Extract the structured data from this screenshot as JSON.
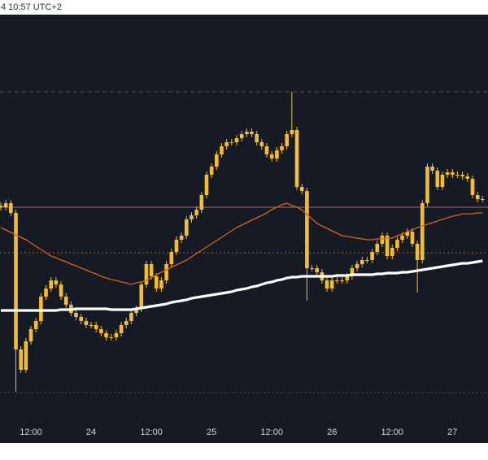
{
  "chart_data": {
    "type": "candlestick",
    "timestamp": "4 10:57 UTC+2",
    "categories": [
      null,
      null,
      null,
      null,
      null,
      null,
      "12:00",
      null,
      null,
      null,
      null,
      null,
      null,
      null,
      null,
      null,
      null,
      null,
      "24",
      null,
      null,
      null,
      null,
      null,
      null,
      null,
      null,
      null,
      null,
      null,
      "12:00",
      null,
      null,
      null,
      null,
      null,
      null,
      null,
      null,
      null,
      null,
      null,
      "25",
      null,
      null,
      null,
      null,
      null,
      null,
      null,
      null,
      null,
      null,
      null,
      "12:00",
      null,
      null,
      null,
      null,
      null,
      null,
      null,
      null,
      null,
      null,
      null,
      "26",
      null,
      null,
      null,
      null,
      null,
      null,
      null,
      null,
      null,
      null,
      null,
      "12:00",
      null,
      null,
      null,
      null,
      null,
      null,
      null,
      null,
      null,
      null,
      null,
      "27",
      null,
      null,
      null,
      null,
      null,
      null
    ],
    "open": [
      265,
      263,
      268,
      256,
      88,
      63,
      98,
      113,
      123,
      153,
      163,
      173,
      168,
      153,
      143,
      133,
      128,
      123,
      118,
      118,
      113,
      108,
      103,
      103,
      108,
      118,
      123,
      133,
      138,
      168,
      193,
      178,
      163,
      173,
      193,
      208,
      223,
      228,
      248,
      253,
      260,
      278,
      303,
      313,
      328,
      338,
      343,
      343,
      348,
      353,
      356,
      353,
      343,
      338,
      328,
      323,
      333,
      338,
      353,
      358,
      288,
      283,
      188,
      188,
      183,
      173,
      163,
      173,
      173,
      173,
      178,
      188,
      193,
      198,
      198,
      208,
      218,
      228,
      203,
      213,
      223,
      228,
      233,
      218,
      198,
      268,
      313,
      308,
      288,
      303,
      306,
      303,
      303,
      301,
      298,
      278,
      273
    ],
    "high": [
      269,
      272,
      272,
      260,
      92,
      102,
      117,
      127,
      157,
      167,
      177,
      177,
      172,
      157,
      147,
      137,
      132,
      127,
      122,
      122,
      117,
      112,
      107,
      112,
      122,
      127,
      137,
      142,
      172,
      197,
      197,
      182,
      177,
      197,
      212,
      227,
      232,
      252,
      257,
      264,
      282,
      307,
      317,
      332,
      342,
      347,
      347,
      352,
      357,
      360,
      360,
      357,
      347,
      342,
      332,
      337,
      342,
      357,
      405,
      362,
      292,
      287,
      192,
      192,
      187,
      177,
      177,
      177,
      177,
      182,
      192,
      197,
      202,
      202,
      212,
      222,
      232,
      232,
      217,
      227,
      232,
      237,
      237,
      222,
      272,
      317,
      317,
      312,
      307,
      310,
      310,
      307,
      307,
      305,
      302,
      282,
      277
    ],
    "low": [
      259,
      259,
      252,
      36,
      59,
      59,
      94,
      109,
      119,
      149,
      159,
      164,
      149,
      139,
      129,
      124,
      119,
      114,
      114,
      109,
      104,
      99,
      99,
      99,
      104,
      114,
      119,
      129,
      134,
      164,
      174,
      159,
      159,
      169,
      189,
      204,
      219,
      224,
      244,
      249,
      256,
      274,
      299,
      309,
      324,
      334,
      339,
      339,
      344,
      349,
      349,
      339,
      334,
      324,
      319,
      319,
      329,
      334,
      349,
      284,
      279,
      148,
      184,
      179,
      169,
      159,
      159,
      169,
      169,
      169,
      174,
      184,
      189,
      194,
      194,
      204,
      214,
      199,
      199,
      209,
      219,
      224,
      214,
      158,
      194,
      264,
      304,
      284,
      284,
      299,
      299,
      299,
      297,
      294,
      274,
      269,
      269
    ],
    "close": [
      263,
      268,
      256,
      88,
      63,
      98,
      113,
      123,
      153,
      163,
      173,
      168,
      153,
      143,
      133,
      128,
      123,
      118,
      118,
      113,
      108,
      103,
      103,
      108,
      118,
      123,
      133,
      138,
      168,
      193,
      178,
      163,
      173,
      193,
      208,
      223,
      228,
      248,
      253,
      260,
      278,
      303,
      313,
      328,
      338,
      343,
      343,
      348,
      353,
      356,
      353,
      343,
      338,
      328,
      323,
      333,
      338,
      353,
      358,
      288,
      283,
      188,
      188,
      183,
      173,
      163,
      173,
      173,
      173,
      178,
      188,
      193,
      198,
      198,
      208,
      218,
      228,
      203,
      213,
      223,
      228,
      233,
      218,
      198,
      268,
      313,
      308,
      288,
      303,
      306,
      303,
      303,
      301,
      298,
      278,
      273,
      273
    ],
    "color": "#f2bd2f",
    "overlays": [
      {
        "color": "#d8621e",
        "width": 1.3,
        "values": [
          238,
          235,
          232,
          229,
          226,
          223,
          219,
          215,
          211,
          207,
          203,
          201,
          198,
          196,
          193,
          191,
          188,
          186,
          183,
          181,
          178,
          176,
          174,
          173,
          171,
          170,
          168,
          170,
          171,
          173,
          176,
          180,
          183,
          186,
          189,
          192,
          195,
          198,
          202,
          206,
          210,
          214,
          218,
          222,
          226,
          230,
          234,
          238,
          241,
          244,
          247,
          250,
          253,
          256,
          260,
          263,
          266,
          268,
          265,
          263,
          260,
          254,
          249,
          243,
          240,
          237,
          234,
          231,
          228,
          227,
          226,
          225,
          224,
          223,
          223,
          224,
          224,
          225,
          225,
          228,
          230,
          233,
          235,
          238,
          240,
          242,
          244,
          246,
          248,
          250,
          252,
          253,
          255,
          255,
          255,
          256,
          256
        ]
      },
      {
        "color": "#ffffff",
        "width": 3.2,
        "values": [
          136,
          136,
          136,
          136,
          136,
          136,
          136,
          136,
          136,
          136,
          136,
          136,
          137,
          137,
          137,
          138,
          138,
          138,
          138,
          138,
          138,
          138,
          137,
          137,
          137,
          137,
          137,
          138,
          139,
          140,
          141,
          142,
          143,
          144,
          146,
          147,
          148,
          149,
          151,
          152,
          153,
          154,
          155,
          156,
          157,
          158,
          159,
          161,
          162,
          163,
          165,
          166,
          168,
          170,
          171,
          173,
          174,
          176,
          177,
          177,
          178,
          178,
          178,
          178,
          178,
          178,
          178,
          179,
          179,
          179,
          180,
          180,
          180,
          180,
          180,
          181,
          181,
          182,
          182,
          182,
          183,
          183,
          184,
          185,
          186,
          187,
          188,
          189,
          190,
          191,
          192,
          193,
          194,
          194,
          195,
          196,
          197
        ]
      }
    ],
    "levels": [
      {
        "value": 405,
        "color": "#4a4f5c",
        "style": "dashed"
      },
      {
        "value": 263,
        "color": "#a86a6e",
        "style": "solid"
      },
      {
        "value": 207,
        "color": "#b5651d",
        "style": "dotted"
      },
      {
        "value": 35,
        "color": "#4a4f5c",
        "style": "dotted"
      }
    ],
    "ylim": [
      0,
      500
    ]
  }
}
